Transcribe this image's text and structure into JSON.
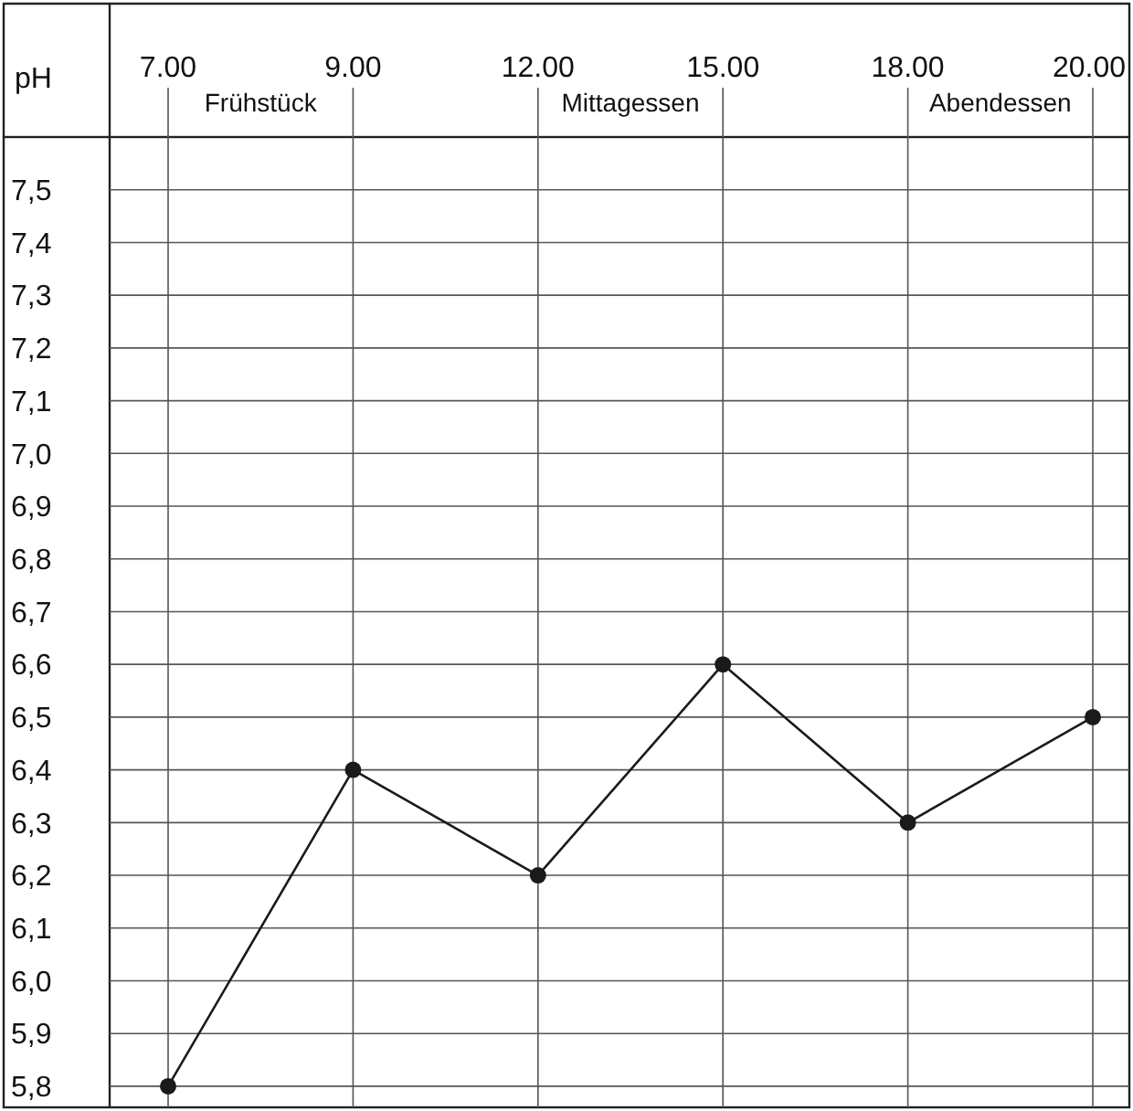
{
  "chart_data": {
    "type": "line",
    "ylabel": "pH",
    "categories": [
      "7.00",
      "9.00",
      "12.00",
      "15.00",
      "18.00",
      "20.00"
    ],
    "series": [
      {
        "color": "#1a1a1a",
        "values": [
          5.8,
          6.4,
          6.2,
          6.6,
          6.3,
          6.5
        ]
      }
    ],
    "ylim": [
      5.76,
      7.6
    ],
    "yticks": [
      {
        "value": 5.8,
        "label": "5,8"
      },
      {
        "value": 5.9,
        "label": "5,9"
      },
      {
        "value": 6.0,
        "label": "6,0"
      },
      {
        "value": 6.1,
        "label": "6,1"
      },
      {
        "value": 6.2,
        "label": "6,2"
      },
      {
        "value": 6.3,
        "label": "6,3"
      },
      {
        "value": 6.4,
        "label": "6,4"
      },
      {
        "value": 6.5,
        "label": "6,5"
      },
      {
        "value": 6.6,
        "label": "6,6"
      },
      {
        "value": 6.7,
        "label": "6,7"
      },
      {
        "value": 6.8,
        "label": "6,8"
      },
      {
        "value": 6.9,
        "label": "6,9"
      },
      {
        "value": 7.0,
        "label": "7,0"
      },
      {
        "value": 7.1,
        "label": "7,1"
      },
      {
        "value": 7.2,
        "label": "7,2"
      },
      {
        "value": 7.3,
        "label": "7,3"
      },
      {
        "value": 7.4,
        "label": "7,4"
      },
      {
        "value": 7.5,
        "label": "7,5"
      }
    ],
    "annotations": [
      "Frühstück",
      "Mittagessen",
      "Abendessen"
    ],
    "grid": true,
    "marker": "circle",
    "line_style": "solid"
  }
}
